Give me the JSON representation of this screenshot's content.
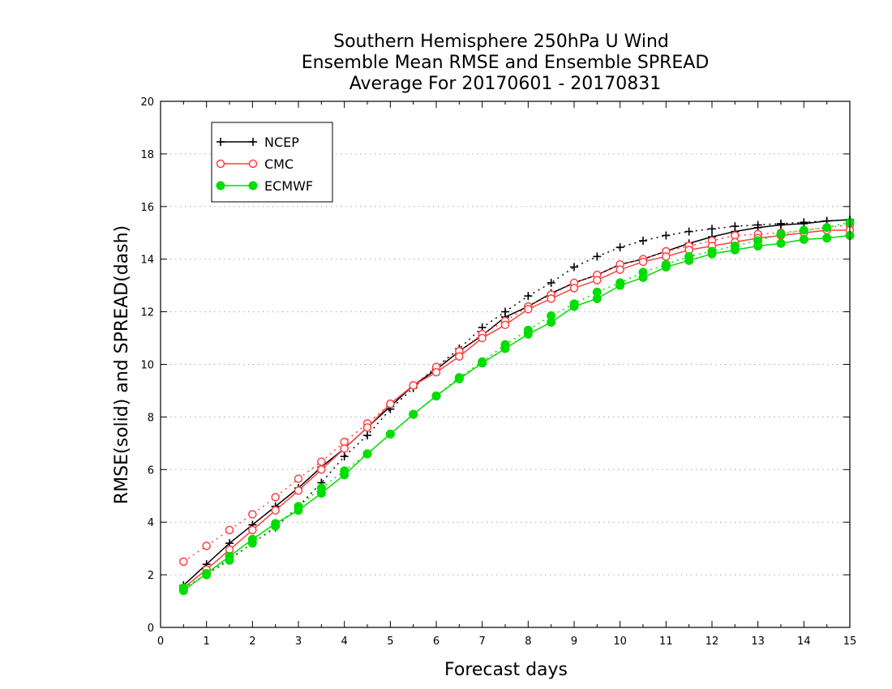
{
  "chart_data": {
    "type": "line",
    "title_lines": [
      "Southern Hemisphere 250hPa U Wind",
      "Ensemble Mean RMSE and Ensemble SPREAD",
      "Average For 20170601 - 20170831"
    ],
    "xlabel": "Forecast days",
    "ylabel": "RMSE(solid) and SPREAD(dash)",
    "xlim": [
      0,
      15
    ],
    "ylim": [
      0,
      20
    ],
    "xticks": [
      0,
      1,
      2,
      3,
      4,
      5,
      6,
      7,
      8,
      9,
      10,
      11,
      12,
      13,
      14,
      15
    ],
    "yticks": [
      0,
      2,
      4,
      6,
      8,
      10,
      12,
      14,
      16,
      18,
      20
    ],
    "grid": "horizontal dotted",
    "legend_position": "top-left",
    "x": [
      0.5,
      1,
      1.5,
      2,
      2.5,
      3,
      3.5,
      4,
      4.5,
      5,
      5.5,
      6,
      6.5,
      7,
      7.5,
      8,
      8.5,
      9,
      9.5,
      10,
      10.5,
      11,
      11.5,
      12,
      12.5,
      13,
      13.5,
      14,
      14.5,
      15
    ],
    "series": [
      {
        "name": "NCEP",
        "color": "#000000",
        "marker": "plus",
        "rmse": [
          1.6,
          2.4,
          3.2,
          3.9,
          4.6,
          5.3,
          6.1,
          6.8,
          7.6,
          8.4,
          9.2,
          9.8,
          10.5,
          11.1,
          11.8,
          12.2,
          12.7,
          13.1,
          13.4,
          13.8,
          14.0,
          14.3,
          14.6,
          14.85,
          15.05,
          15.2,
          15.3,
          15.35,
          15.45,
          15.5
        ],
        "spread": [
          1.5,
          2.0,
          2.6,
          3.2,
          3.8,
          4.6,
          5.5,
          6.5,
          7.3,
          8.3,
          9.1,
          9.9,
          10.6,
          11.4,
          12.0,
          12.6,
          13.1,
          13.7,
          14.1,
          14.45,
          14.7,
          14.9,
          15.05,
          15.15,
          15.25,
          15.3,
          15.35,
          15.4,
          15.45,
          15.5
        ]
      },
      {
        "name": "CMC",
        "color": "#ff4040",
        "marker": "open-circle",
        "rmse": [
          1.5,
          2.2,
          2.95,
          3.7,
          4.45,
          5.2,
          6.0,
          6.8,
          7.6,
          8.5,
          9.2,
          9.7,
          10.3,
          11.0,
          11.5,
          12.1,
          12.5,
          12.9,
          13.2,
          13.6,
          13.9,
          14.1,
          14.35,
          14.5,
          14.65,
          14.8,
          14.9,
          15.0,
          15.1,
          15.1
        ],
        "spread": [
          2.5,
          3.1,
          3.7,
          4.3,
          4.95,
          5.65,
          6.3,
          7.05,
          7.75,
          8.5,
          9.2,
          9.9,
          10.5,
          11.15,
          11.65,
          12.2,
          12.65,
          13.1,
          13.4,
          13.8,
          14.0,
          14.3,
          14.5,
          14.7,
          14.9,
          14.95,
          15.0,
          15.1,
          15.2,
          15.3
        ]
      },
      {
        "name": "ECMWF",
        "color": "#00dd00",
        "marker": "filled-circle",
        "rmse": [
          1.4,
          2.05,
          2.7,
          3.35,
          3.95,
          4.45,
          5.1,
          5.8,
          6.6,
          7.35,
          8.1,
          8.8,
          9.45,
          10.05,
          10.6,
          11.15,
          11.6,
          12.2,
          12.5,
          13.0,
          13.3,
          13.7,
          13.95,
          14.2,
          14.35,
          14.5,
          14.6,
          14.75,
          14.8,
          14.9
        ],
        "spread": [
          1.5,
          2.0,
          2.55,
          3.2,
          3.85,
          4.6,
          5.3,
          5.95,
          6.6,
          7.35,
          8.1,
          8.8,
          9.5,
          10.1,
          10.75,
          11.3,
          11.85,
          12.3,
          12.75,
          13.1,
          13.5,
          13.8,
          14.1,
          14.3,
          14.5,
          14.7,
          14.95,
          15.1,
          15.2,
          15.4
        ]
      }
    ]
  }
}
